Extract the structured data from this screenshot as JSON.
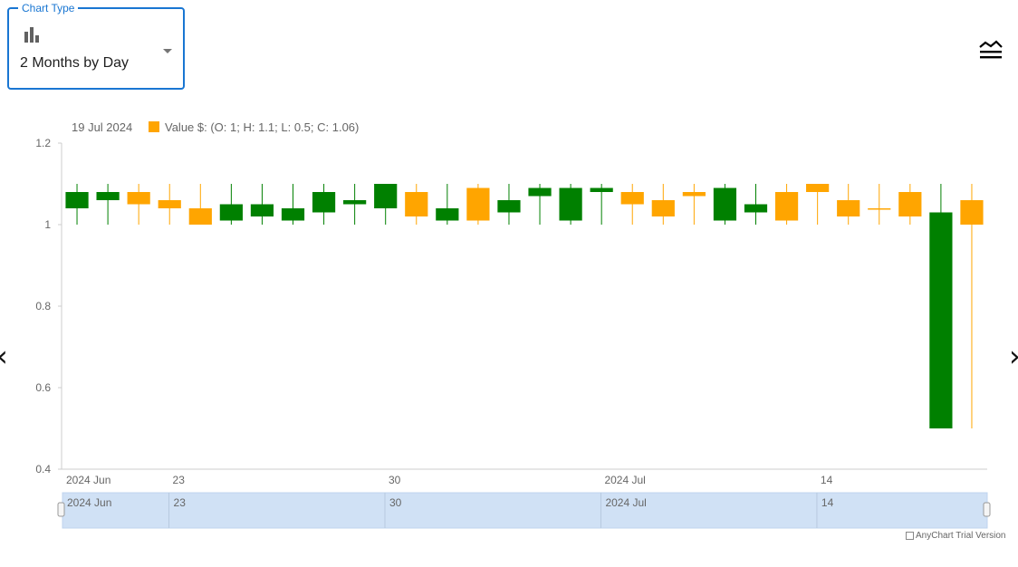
{
  "selector": {
    "legend": "Chart Type",
    "value": "2 Months by Day",
    "icon": "bar-chart-icon"
  },
  "menu_icon": "stacked-chart-menu-icon",
  "nav": {
    "prev": "‹",
    "next": "›"
  },
  "legend_bar": {
    "date": "19 Jul 2024",
    "series_label": "Value $: (O: 1; H: 1.1; L: 0.5; C: 1.06)",
    "series_color": "#ffa500"
  },
  "credits": "AnyChart Trial Version",
  "colors": {
    "rising": "#ffa500",
    "falling": "#008000",
    "scroller_fill": "#d0e1f5",
    "axis": "#cccccc",
    "label": "#666666"
  },
  "chart_data": {
    "type": "candlestick",
    "series_name": "Value $",
    "ylim": [
      0.4,
      1.2
    ],
    "yticks": [
      "1.2",
      "1",
      "0.8",
      "0.6",
      "0.4"
    ],
    "xticks": [
      {
        "label": "2024 Jun",
        "index": 0
      },
      {
        "label": "23",
        "index": 3.45
      },
      {
        "label": "30",
        "index": 10.45
      },
      {
        "label": "2024 Jul",
        "index": 17.45
      },
      {
        "label": "14",
        "index": 24.45
      }
    ],
    "scroller_ticks": [
      "2024 Jun",
      "23",
      "30",
      "2024 Jul",
      "14"
    ],
    "candles": [
      {
        "o": 1.08,
        "h": 1.1,
        "l": 1.0,
        "c": 1.04
      },
      {
        "o": 1.08,
        "h": 1.1,
        "l": 1.0,
        "c": 1.06
      },
      {
        "o": 1.05,
        "h": 1.1,
        "l": 1.0,
        "c": 1.08
      },
      {
        "o": 1.04,
        "h": 1.1,
        "l": 1.0,
        "c": 1.06
      },
      {
        "o": 1.0,
        "h": 1.1,
        "l": 1.0,
        "c": 1.04
      },
      {
        "o": 1.05,
        "h": 1.1,
        "l": 1.0,
        "c": 1.01
      },
      {
        "o": 1.05,
        "h": 1.1,
        "l": 1.0,
        "c": 1.02
      },
      {
        "o": 1.04,
        "h": 1.1,
        "l": 1.0,
        "c": 1.01
      },
      {
        "o": 1.08,
        "h": 1.1,
        "l": 1.0,
        "c": 1.03
      },
      {
        "o": 1.06,
        "h": 1.1,
        "l": 1.0,
        "c": 1.05
      },
      {
        "o": 1.1,
        "h": 1.1,
        "l": 1.0,
        "c": 1.04
      },
      {
        "o": 1.02,
        "h": 1.1,
        "l": 1.0,
        "c": 1.08
      },
      {
        "o": 1.04,
        "h": 1.1,
        "l": 1.0,
        "c": 1.01
      },
      {
        "o": 1.01,
        "h": 1.1,
        "l": 1.0,
        "c": 1.09
      },
      {
        "o": 1.06,
        "h": 1.1,
        "l": 1.0,
        "c": 1.03
      },
      {
        "o": 1.09,
        "h": 1.1,
        "l": 1.0,
        "c": 1.07
      },
      {
        "o": 1.09,
        "h": 1.1,
        "l": 1.0,
        "c": 1.01
      },
      {
        "o": 1.09,
        "h": 1.1,
        "l": 1.0,
        "c": 1.08
      },
      {
        "o": 1.05,
        "h": 1.1,
        "l": 1.0,
        "c": 1.08
      },
      {
        "o": 1.02,
        "h": 1.1,
        "l": 1.0,
        "c": 1.06
      },
      {
        "o": 1.07,
        "h": 1.1,
        "l": 1.0,
        "c": 1.08
      },
      {
        "o": 1.09,
        "h": 1.1,
        "l": 1.0,
        "c": 1.01
      },
      {
        "o": 1.05,
        "h": 1.1,
        "l": 1.0,
        "c": 1.03
      },
      {
        "o": 1.01,
        "h": 1.1,
        "l": 1.0,
        "c": 1.08
      },
      {
        "o": 1.08,
        "h": 1.1,
        "l": 1.0,
        "c": 1.1
      },
      {
        "o": 1.02,
        "h": 1.1,
        "l": 1.0,
        "c": 1.06
      },
      {
        "o": 1.04,
        "h": 1.1,
        "l": 1.0,
        "c": 1.04
      },
      {
        "o": 1.02,
        "h": 1.1,
        "l": 1.0,
        "c": 1.08
      },
      {
        "o": 1.03,
        "h": 1.1,
        "l": 0.5,
        "c": 0.5
      },
      {
        "o": 1.0,
        "h": 1.1,
        "l": 0.5,
        "c": 1.06
      }
    ]
  }
}
